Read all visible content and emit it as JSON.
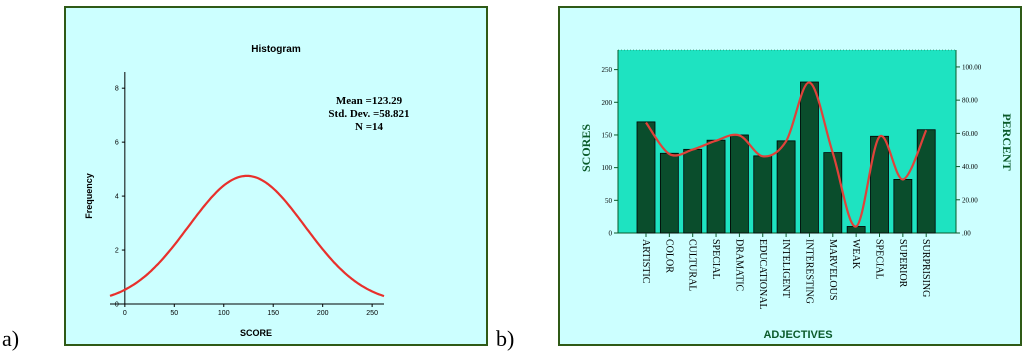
{
  "panels": {
    "a_letter": "a)",
    "b_letter": "b)"
  },
  "chart_data": [
    {
      "type": "line",
      "title": "Histogram",
      "xlabel": "SCORE",
      "ylabel": "Frequency",
      "xlim": [
        -15,
        262
      ],
      "ylim": [
        0,
        8.6
      ],
      "x_ticks": [
        0,
        50,
        100,
        150,
        200,
        250
      ],
      "y_ticks": [
        0,
        2,
        4,
        6,
        8
      ],
      "stats": [
        "Mean =123.29",
        "Std. Dev. =58.821",
        "N =14"
      ],
      "normal_curve": {
        "mean": 123.29,
        "std_dev": 58.821,
        "peak": 4.75
      },
      "curve_color": "#e8302c"
    },
    {
      "type": "bar",
      "xlabel": "ADJECTIVES",
      "ylabel": "SCORES",
      "y2label": "PERCENT",
      "categories": [
        "ARTISTIC",
        "COLOR",
        "CULTURAL",
        "SPECIAL",
        "DRAMATIC",
        "EDUCATIONAL",
        "INTELIGENT",
        "INTERESTING",
        "MARVELOUS",
        "WEAK",
        "SPECIAL",
        "SUPERIOR",
        "SURPRISING"
      ],
      "values": [
        170,
        122,
        128,
        142,
        150,
        118,
        141,
        231,
        123,
        10,
        148,
        82,
        158
      ],
      "ylim": [
        0,
        280
      ],
      "y_ticks": [
        0,
        50,
        100,
        150,
        200,
        250
      ],
      "y2lim": [
        0,
        110.2
      ],
      "y2_ticks": [
        ".00",
        "20.00",
        "40.00",
        "60.00",
        "80.00",
        "100.00"
      ],
      "percent_line": [
        66.5,
        47.6,
        50.2,
        55.6,
        58.8,
        46.2,
        55.3,
        90.6,
        48.2,
        3.9,
        58.0,
        32.2,
        61.9
      ],
      "bar_color": "#0a4d2c",
      "plot_bg": "#1ee3c1",
      "line_color": "#e0423a"
    }
  ]
}
